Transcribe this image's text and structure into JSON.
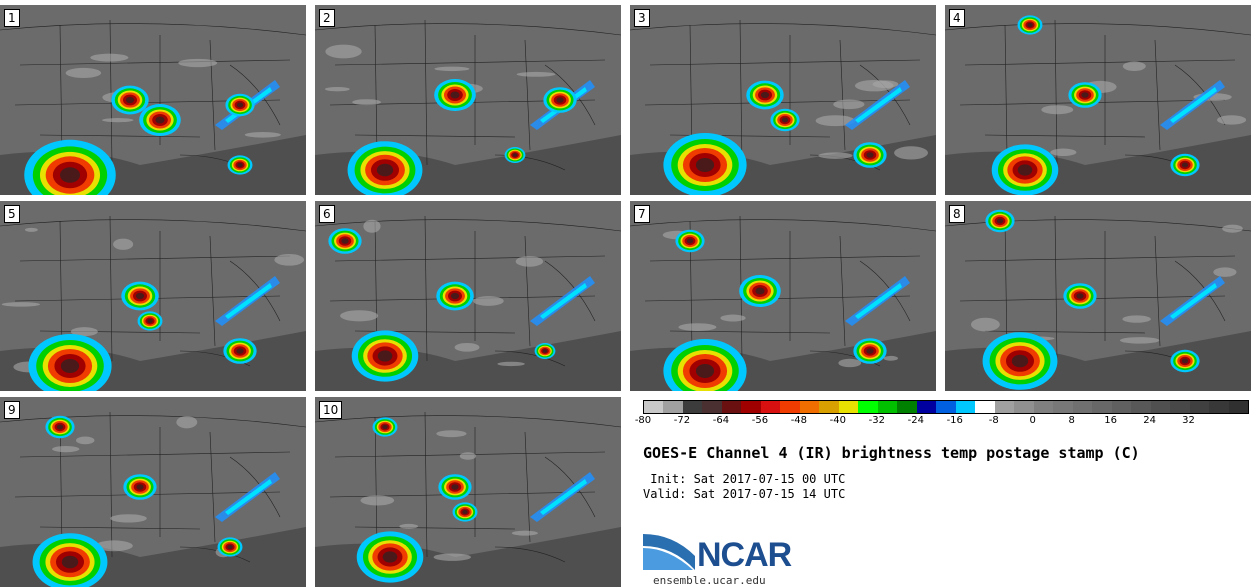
{
  "panels": [
    {
      "label": "1"
    },
    {
      "label": "2"
    },
    {
      "label": "3"
    },
    {
      "label": "4"
    },
    {
      "label": "5"
    },
    {
      "label": "6"
    },
    {
      "label": "7"
    },
    {
      "label": "8"
    },
    {
      "label": "9"
    },
    {
      "label": "10"
    }
  ],
  "colorbar": {
    "colors": [
      "#c8c8c8",
      "#a0a0a0",
      "#3c3c3c",
      "#4a3030",
      "#6a1010",
      "#a00000",
      "#d81010",
      "#f03c00",
      "#f06e00",
      "#d8a000",
      "#e8e000",
      "#00ff00",
      "#00c000",
      "#008000",
      "#0000a0",
      "#0060e0",
      "#00c8ff",
      "#ffffff",
      "#a0a0a0",
      "#909090",
      "#808080",
      "#787878",
      "#707070",
      "#686868",
      "#606060",
      "#585858",
      "#505050",
      "#484848",
      "#404040",
      "#383838",
      "#303030"
    ],
    "tick_labels": [
      "-80",
      "-72",
      "-64",
      "-56",
      "-48",
      "-40",
      "-32",
      "-24",
      "-16",
      "-8",
      "0",
      "8",
      "16",
      "24",
      "32"
    ]
  },
  "title": "GOES-E Channel 4 (IR) brightness temp postage stamp (C)",
  "init": " Init: Sat 2017-07-15 00 UTC",
  "valid": "Valid: Sat 2017-07-15 14 UTC",
  "logo": "NCAR",
  "site": "ensemble.ucar.edu"
}
